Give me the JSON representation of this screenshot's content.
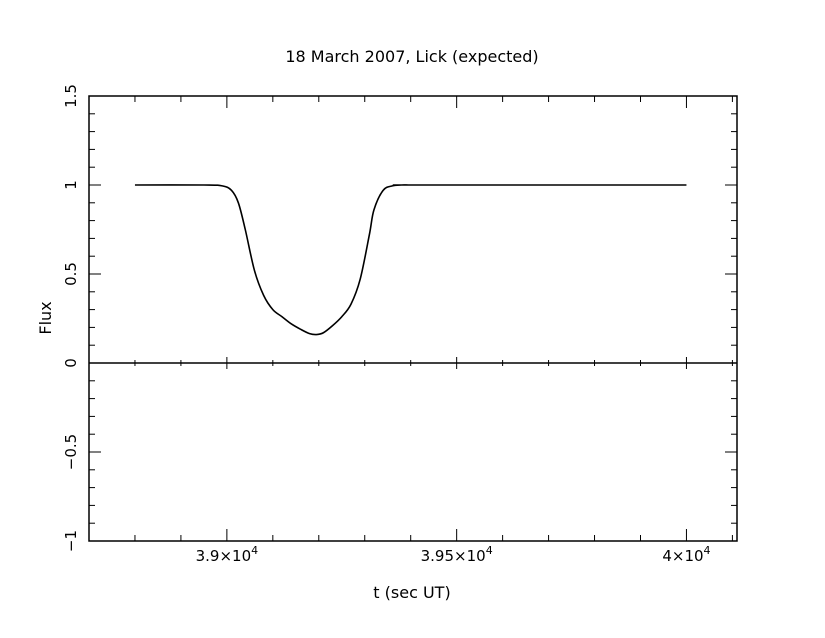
{
  "chart_data": {
    "type": "line",
    "title": "18 March 2007, Lick (expected)",
    "xlabel": "t (sec UT)",
    "ylabel": "Flux",
    "xlim": [
      38700,
      40110
    ],
    "ylim": [
      -1,
      1.5
    ],
    "x_ticks": [
      {
        "value": 39000,
        "mantissa": "3.9",
        "exponent": "4"
      },
      {
        "value": 39500,
        "mantissa": "3.95",
        "exponent": "4"
      },
      {
        "value": 40000,
        "mantissa": "4",
        "exponent": "4"
      }
    ],
    "y_ticks": [
      {
        "value": -1,
        "label": "−1"
      },
      {
        "value": -0.5,
        "label": "−0.5"
      },
      {
        "value": 0,
        "label": "0"
      },
      {
        "value": 0.5,
        "label": "0.5"
      },
      {
        "value": 1,
        "label": "1"
      },
      {
        "value": 1.5,
        "label": "1.5"
      }
    ],
    "zero_line": 0,
    "grid": false,
    "series": [
      {
        "color": "#000000",
        "x": [
          38800,
          38950,
          38990,
          39010,
          39025,
          39040,
          39060,
          39080,
          39100,
          39120,
          39140,
          39160,
          39180,
          39195,
          39210,
          39230,
          39250,
          39270,
          39290,
          39310,
          39320,
          39340,
          39360,
          39380,
          39395,
          39410,
          40000
        ],
        "y": [
          1.0,
          1.0,
          0.995,
          0.97,
          0.9,
          0.75,
          0.52,
          0.38,
          0.3,
          0.26,
          0.22,
          0.19,
          0.165,
          0.16,
          0.17,
          0.21,
          0.26,
          0.33,
          0.47,
          0.72,
          0.86,
          0.97,
          0.995,
          1.0,
          1.0,
          1.0,
          1.0
        ]
      }
    ]
  }
}
